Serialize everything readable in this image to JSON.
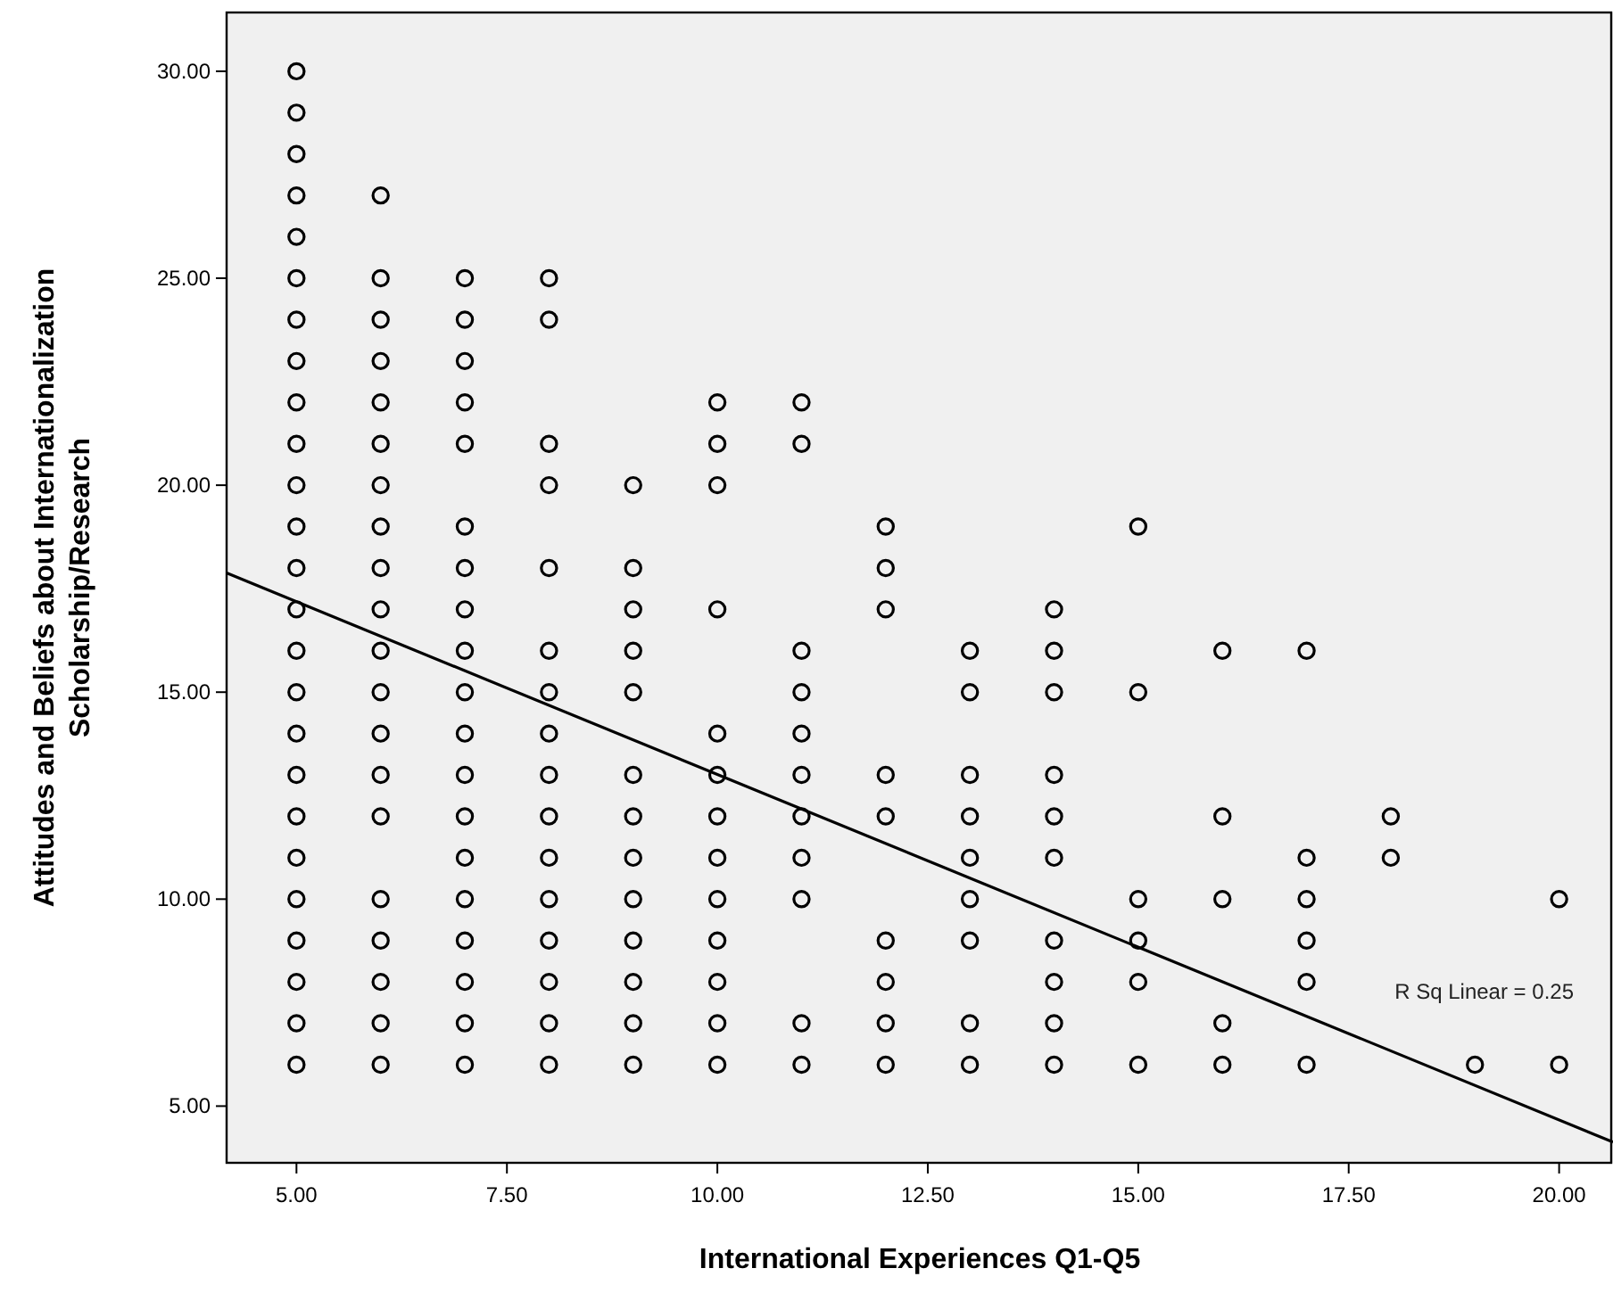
{
  "chart_data": {
    "type": "scatter",
    "xlabel": "International Experiences Q1-Q5",
    "ylabel": "Attitudes and Beliefs about Internationalization Scholarship/Research",
    "xlim": [
      4.17,
      20.64
    ],
    "ylim": [
      3.63,
      31.42
    ],
    "xticks": [
      {
        "value": 5,
        "label": "5.00"
      },
      {
        "value": 7.5,
        "label": "7.50"
      },
      {
        "value": 10,
        "label": "10.00"
      },
      {
        "value": 12.5,
        "label": "12.50"
      },
      {
        "value": 15,
        "label": "15.00"
      },
      {
        "value": 17.5,
        "label": "17.50"
      },
      {
        "value": 20,
        "label": "20.00"
      }
    ],
    "yticks": [
      {
        "value": 5,
        "label": "5.00"
      },
      {
        "value": 10,
        "label": "10.00"
      },
      {
        "value": 15,
        "label": "15.00"
      },
      {
        "value": 20,
        "label": "20.00"
      },
      {
        "value": 25,
        "label": "25.00"
      },
      {
        "value": 30,
        "label": "30.00"
      }
    ],
    "grid": false,
    "marker": "circle",
    "series": [
      {
        "color": "#000000",
        "x": [
          5,
          5,
          5,
          5,
          5,
          5,
          5,
          5,
          5,
          5,
          5,
          5,
          5,
          5,
          5,
          5,
          5,
          5,
          5,
          5,
          5,
          5,
          5,
          5,
          5,
          6,
          6,
          6,
          6,
          6,
          6,
          6,
          6,
          6,
          6,
          6,
          6,
          6,
          6,
          6,
          6,
          6,
          6,
          6,
          6,
          7,
          7,
          7,
          7,
          7,
          7,
          7,
          7,
          7,
          7,
          7,
          7,
          7,
          7,
          7,
          7,
          7,
          7,
          7,
          8,
          8,
          8,
          8,
          8,
          8,
          8,
          8,
          8,
          8,
          8,
          8,
          8,
          8,
          8,
          8,
          9,
          9,
          9,
          9,
          9,
          9,
          9,
          9,
          9,
          9,
          9,
          9,
          9,
          10,
          10,
          10,
          10,
          10,
          10,
          10,
          10,
          10,
          10,
          10,
          10,
          10,
          11,
          11,
          11,
          11,
          11,
          11,
          11,
          11,
          11,
          11,
          11,
          12,
          12,
          12,
          12,
          12,
          12,
          12,
          12,
          12,
          13,
          13,
          13,
          13,
          13,
          13,
          13,
          13,
          13,
          14,
          14,
          14,
          14,
          14,
          14,
          14,
          14,
          14,
          14,
          15,
          15,
          15,
          15,
          15,
          15,
          16,
          16,
          16,
          16,
          16,
          17,
          17,
          17,
          17,
          17,
          17,
          18,
          18,
          19,
          20,
          20
        ],
        "values": [
          6,
          7,
          8,
          9,
          10,
          11,
          12,
          13,
          14,
          15,
          16,
          17,
          18,
          19,
          20,
          21,
          22,
          23,
          24,
          25,
          26,
          27,
          28,
          29,
          30,
          27,
          25,
          24,
          23,
          22,
          21,
          20,
          19,
          18,
          17,
          16,
          15,
          14,
          13,
          12,
          10,
          9,
          8,
          7,
          6,
          25,
          24,
          23,
          22,
          21,
          19,
          18,
          17,
          16,
          15,
          14,
          13,
          12,
          11,
          10,
          9,
          8,
          7,
          6,
          25,
          24,
          21,
          20,
          18,
          16,
          15,
          14,
          13,
          12,
          11,
          10,
          9,
          8,
          7,
          6,
          20,
          18,
          17,
          16,
          15,
          13,
          12,
          11,
          10,
          9,
          8,
          7,
          6,
          22,
          21,
          20,
          17,
          14,
          13,
          12,
          11,
          10,
          9,
          8,
          7,
          6,
          22,
          21,
          16,
          15,
          14,
          13,
          12,
          11,
          10,
          7,
          6,
          19,
          18,
          17,
          13,
          12,
          9,
          8,
          7,
          6,
          16,
          15,
          13,
          12,
          11,
          10,
          9,
          7,
          6,
          17,
          16,
          15,
          13,
          12,
          11,
          9,
          8,
          7,
          6,
          19,
          15,
          10,
          9,
          8,
          6,
          16,
          12,
          10,
          7,
          6,
          16,
          11,
          10,
          9,
          8,
          6,
          12,
          11,
          6,
          10,
          6
        ]
      },
      {
        "type": "line",
        "marker": "none",
        "color": "#000000",
        "x": [
          4.17,
          20.64
        ],
        "values": [
          17.88,
          4.13
        ]
      }
    ],
    "annotations": [
      "R Sq Linear = 0.25"
    ]
  }
}
